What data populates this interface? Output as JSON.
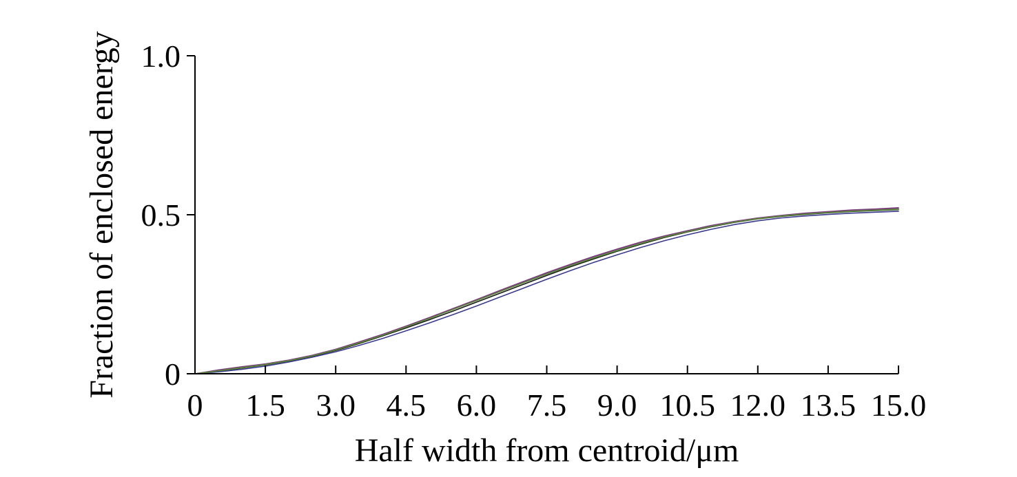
{
  "chart_data": {
    "type": "line",
    "title": "",
    "xlabel": "Half width from centroid/μm",
    "ylabel": "Fraction of enclosed energy",
    "xlim": [
      0,
      15
    ],
    "ylim": [
      0,
      1
    ],
    "x_ticks": [
      "0",
      "1.5",
      "3.0",
      "4.5",
      "6.0",
      "7.5",
      "9.0",
      "10.5",
      "12.0",
      "13.5",
      "15.0"
    ],
    "y_ticks": [
      "0",
      "0.5",
      "1.0"
    ],
    "x_tick_values": [
      0,
      1.5,
      3,
      4.5,
      6,
      7.5,
      9,
      10.5,
      12,
      13.5,
      15
    ],
    "y_tick_values": [
      0,
      0.5,
      1
    ],
    "grid": false,
    "legend": "none",
    "series": [
      {
        "color": "#1a1a1a",
        "x": [
          0,
          0.5,
          1,
          1.5,
          2,
          2.5,
          3,
          3.5,
          4,
          4.5,
          5,
          5.5,
          6,
          6.5,
          7,
          7.5,
          8,
          8.5,
          9,
          9.5,
          10,
          10.5,
          11,
          11.5,
          12,
          12.5,
          13,
          13.5,
          14,
          14.5,
          15
        ],
        "y": [
          0,
          0.008,
          0.018,
          0.028,
          0.04,
          0.055,
          0.073,
          0.095,
          0.119,
          0.144,
          0.17,
          0.197,
          0.225,
          0.253,
          0.281,
          0.309,
          0.336,
          0.361,
          0.385,
          0.407,
          0.428,
          0.446,
          0.462,
          0.476,
          0.487,
          0.495,
          0.501,
          0.506,
          0.51,
          0.513,
          0.516
        ]
      },
      {
        "color": "#3a3a8c",
        "x": [
          0,
          0.5,
          1,
          1.5,
          2,
          2.5,
          3,
          3.5,
          4,
          4.5,
          5,
          5.5,
          6,
          6.5,
          7,
          7.5,
          8,
          8.5,
          9,
          9.5,
          10,
          10.5,
          11,
          11.5,
          12,
          12.5,
          13,
          13.5,
          14,
          14.5,
          15
        ],
        "y": [
          0,
          0.006,
          0.014,
          0.024,
          0.037,
          0.052,
          0.069,
          0.089,
          0.111,
          0.135,
          0.16,
          0.186,
          0.213,
          0.241,
          0.269,
          0.297,
          0.324,
          0.35,
          0.374,
          0.397,
          0.418,
          0.437,
          0.454,
          0.469,
          0.481,
          0.49,
          0.496,
          0.501,
          0.505,
          0.508,
          0.511
        ]
      },
      {
        "color": "#6b6b6b",
        "x": [
          0,
          0.5,
          1,
          1.5,
          2,
          2.5,
          3,
          3.5,
          4,
          4.5,
          5,
          5.5,
          6,
          6.5,
          7,
          7.5,
          8,
          8.5,
          9,
          9.5,
          10,
          10.5,
          11,
          11.5,
          12,
          12.5,
          13,
          13.5,
          14,
          14.5,
          15
        ],
        "y": [
          0,
          0.01,
          0.02,
          0.03,
          0.042,
          0.057,
          0.076,
          0.098,
          0.122,
          0.148,
          0.175,
          0.203,
          0.231,
          0.259,
          0.287,
          0.315,
          0.341,
          0.366,
          0.389,
          0.411,
          0.431,
          0.448,
          0.464,
          0.477,
          0.488,
          0.496,
          0.503,
          0.508,
          0.512,
          0.516,
          0.519
        ]
      },
      {
        "color": "#7a3a7a",
        "x": [
          0,
          0.5,
          1,
          1.5,
          2,
          2.5,
          3,
          3.5,
          4,
          4.5,
          5,
          5.5,
          6,
          6.5,
          7,
          7.5,
          8,
          8.5,
          9,
          9.5,
          10,
          10.5,
          11,
          11.5,
          12,
          12.5,
          13,
          13.5,
          14,
          14.5,
          15
        ],
        "y": [
          0,
          0.012,
          0.022,
          0.031,
          0.043,
          0.058,
          0.077,
          0.1,
          0.124,
          0.15,
          0.177,
          0.205,
          0.233,
          0.262,
          0.29,
          0.318,
          0.344,
          0.369,
          0.392,
          0.414,
          0.433,
          0.45,
          0.466,
          0.479,
          0.49,
          0.498,
          0.505,
          0.51,
          0.515,
          0.518,
          0.522
        ]
      },
      {
        "color": "#5a8a3a",
        "x": [
          0,
          0.5,
          1,
          1.5,
          2,
          2.5,
          3,
          3.5,
          4,
          4.5,
          5,
          5.5,
          6,
          6.5,
          7,
          7.5,
          8,
          8.5,
          9,
          9.5,
          10,
          10.5,
          11,
          11.5,
          12,
          12.5,
          13,
          13.5,
          14,
          14.5,
          15
        ],
        "y": [
          0,
          0.009,
          0.019,
          0.029,
          0.041,
          0.056,
          0.075,
          0.097,
          0.121,
          0.147,
          0.174,
          0.202,
          0.23,
          0.258,
          0.286,
          0.313,
          0.339,
          0.364,
          0.387,
          0.409,
          0.43,
          0.447,
          0.463,
          0.477,
          0.488,
          0.496,
          0.502,
          0.507,
          0.511,
          0.514,
          0.517
        ]
      }
    ]
  }
}
